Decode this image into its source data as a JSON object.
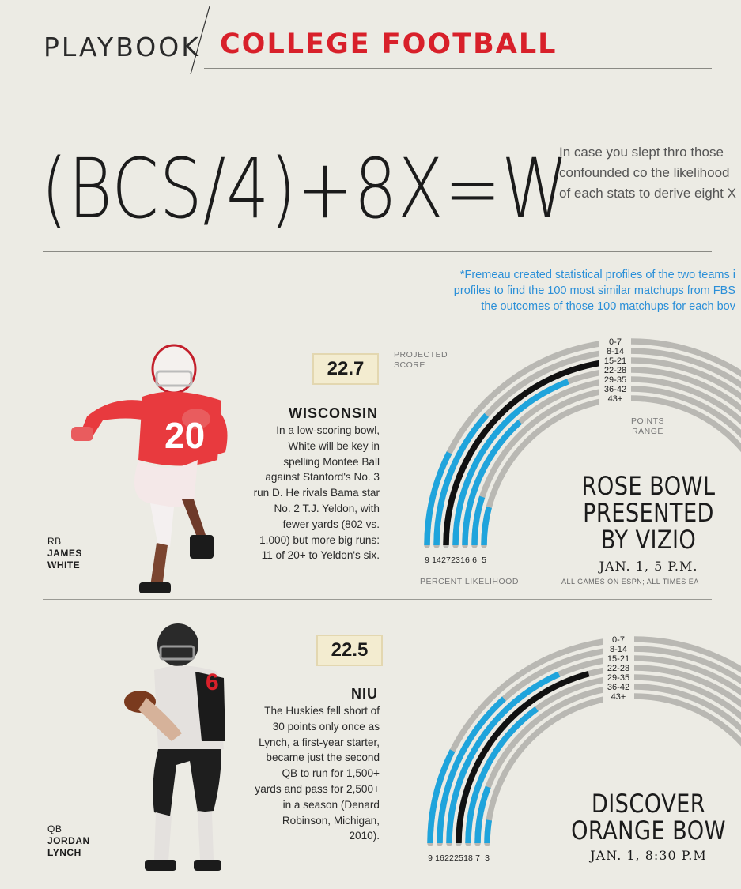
{
  "header": {
    "section": "PLAYBOOK",
    "topic": "COLLEGE FOOTBALL"
  },
  "headline": "(BCS/4)+8X=W",
  "intro": "In case you slept thro those confounded co the likelihood of each stats to derive eight X",
  "footnote": [
    "*Fremeau created statistical profiles of the two teams i",
    "profiles to find the 100 most similar matchups from FBS",
    "the outcomes of those 100 matchups for each bov"
  ],
  "labels": {
    "projected_score": "PROJECTED SCORE",
    "points_range": "POINTS RANGE",
    "percent_likelihood": "PERCENT LIKELIHOOD"
  },
  "colors": {
    "accent": "#d8202a",
    "bar": "#1fa4dc",
    "highlight": "#111111",
    "track": "#b9b8b3"
  },
  "games": [
    {
      "bowl_lines": [
        "ROSE BOWL",
        "PRESENTED",
        "BY VIZIO"
      ],
      "date": "JAN. 1, 5 P.M.",
      "disclaimer": "ALL GAMES ON ESPN; ALL TIMES EA",
      "projected_score": "22.7",
      "team": "WISCONSIN",
      "blurb": "In a low-scoring bowl, White will be key in spelling Montee Ball against Stanford's No. 3 run D. He rivals Bama star No. 2 T.J. Yeldon, with fewer yards (802 vs. 1,000) but more big runs: 11 of 20+ to Yeldon's six.",
      "player": {
        "position": "RB",
        "first": "JAMES",
        "last": "WHITE",
        "jersey": "20"
      },
      "chart_data": {
        "type": "bar",
        "categories": [
          "0-7",
          "8-14",
          "15-21",
          "22-28",
          "29-35",
          "36-42",
          "43+"
        ],
        "values": [
          9,
          14,
          27,
          23,
          16,
          6,
          5
        ],
        "highlight": "15-21"
      }
    },
    {
      "bowl_lines": [
        "DISCOVER",
        "ORANGE BOW"
      ],
      "date": "JAN. 1, 8:30 P.M",
      "projected_score": "22.5",
      "team": "NIU",
      "blurb": "The Huskies fell short of 30 points only once as Lynch, a first-year starter, became just the second QB to run for 1,500+ yards and pass for 2,500+ in a season (Denard Robinson, Michigan, 2010).",
      "player": {
        "position": "QB",
        "first": "JORDAN",
        "last": "LYNCH",
        "jersey": "6"
      },
      "chart_data": {
        "type": "bar",
        "categories": [
          "0-7",
          "8-14",
          "15-21",
          "22-28",
          "29-35",
          "36-42",
          "43+"
        ],
        "values": [
          9,
          16,
          22,
          25,
          18,
          7,
          3
        ],
        "highlight": "22-28"
      }
    }
  ]
}
